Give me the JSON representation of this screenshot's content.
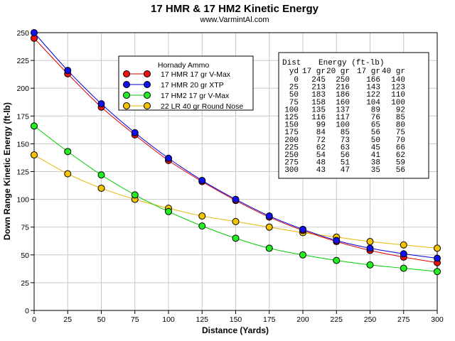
{
  "chart_data": {
    "type": "line",
    "title": "17 HMR & 17 HM2 Kinetic Energy",
    "subtitle": "www.VarmintAl.com",
    "xlabel": "Distance (Yards)",
    "ylabel": "Down Range Kinetic Energy (ft-lb)",
    "xlim": [
      0,
      300
    ],
    "ylim": [
      0,
      250
    ],
    "x_ticks": [
      0,
      25,
      50,
      75,
      100,
      125,
      150,
      175,
      200,
      225,
      250,
      275,
      300
    ],
    "y_ticks": [
      0,
      25,
      50,
      75,
      100,
      125,
      150,
      175,
      200,
      225,
      250
    ],
    "grid": true,
    "legend_title": "Hornady Ammo",
    "legend_position": "top-center",
    "x": [
      0,
      25,
      50,
      75,
      100,
      125,
      150,
      175,
      200,
      225,
      250,
      275,
      300
    ],
    "series": [
      {
        "name": "17 HMR 17 gr V-Max",
        "color": "#dd0000",
        "marker_color": "#ee1111",
        "values": [
          245,
          213,
          183,
          158,
          135,
          116,
          99,
          84,
          72,
          62,
          54,
          48,
          43
        ]
      },
      {
        "name": "17 HMR 20 gr XTP",
        "color": "#0000dd",
        "marker_color": "#1111ee",
        "values": [
          250,
          216,
          186,
          160,
          137,
          117,
          100,
          85,
          73,
          63,
          56,
          51,
          47
        ]
      },
      {
        "name": "17 HM2 17 gr V-Max",
        "color": "#00cc00",
        "marker_color": "#22ee22",
        "values": [
          166,
          143,
          122,
          104,
          89,
          76,
          65,
          56,
          50,
          45,
          41,
          38,
          35
        ]
      },
      {
        "name": "22 LR  40 gr Round Nose",
        "color": "#e6b800",
        "marker_color": "#f5c400",
        "values": [
          140,
          123,
          110,
          100,
          92,
          85,
          80,
          75,
          70,
          66,
          62,
          59,
          56
        ]
      }
    ],
    "table": {
      "header1": [
        "Dist",
        "Energy (ft-lb)"
      ],
      "header2": [
        "yd",
        "17 gr",
        "20 gr",
        "17 gr",
        "40 gr"
      ],
      "rows": [
        [
          "0",
          "245",
          "250",
          "166",
          "140"
        ],
        [
          "25",
          "213",
          "216",
          "143",
          "123"
        ],
        [
          "50",
          "183",
          "186",
          "122",
          "110"
        ],
        [
          "75",
          "158",
          "160",
          "104",
          "100"
        ],
        [
          "100",
          "135",
          "137",
          "89",
          "92"
        ],
        [
          "125",
          "116",
          "117",
          "76",
          "85"
        ],
        [
          "150",
          "99",
          "100",
          "65",
          "80"
        ],
        [
          "175",
          "84",
          "85",
          "56",
          "75"
        ],
        [
          "200",
          "72",
          "73",
          "50",
          "70"
        ],
        [
          "225",
          "62",
          "63",
          "45",
          "66"
        ],
        [
          "250",
          "54",
          "56",
          "41",
          "62"
        ],
        [
          "275",
          "48",
          "51",
          "38",
          "59"
        ],
        [
          "300",
          "43",
          "47",
          "35",
          "56"
        ]
      ]
    }
  }
}
